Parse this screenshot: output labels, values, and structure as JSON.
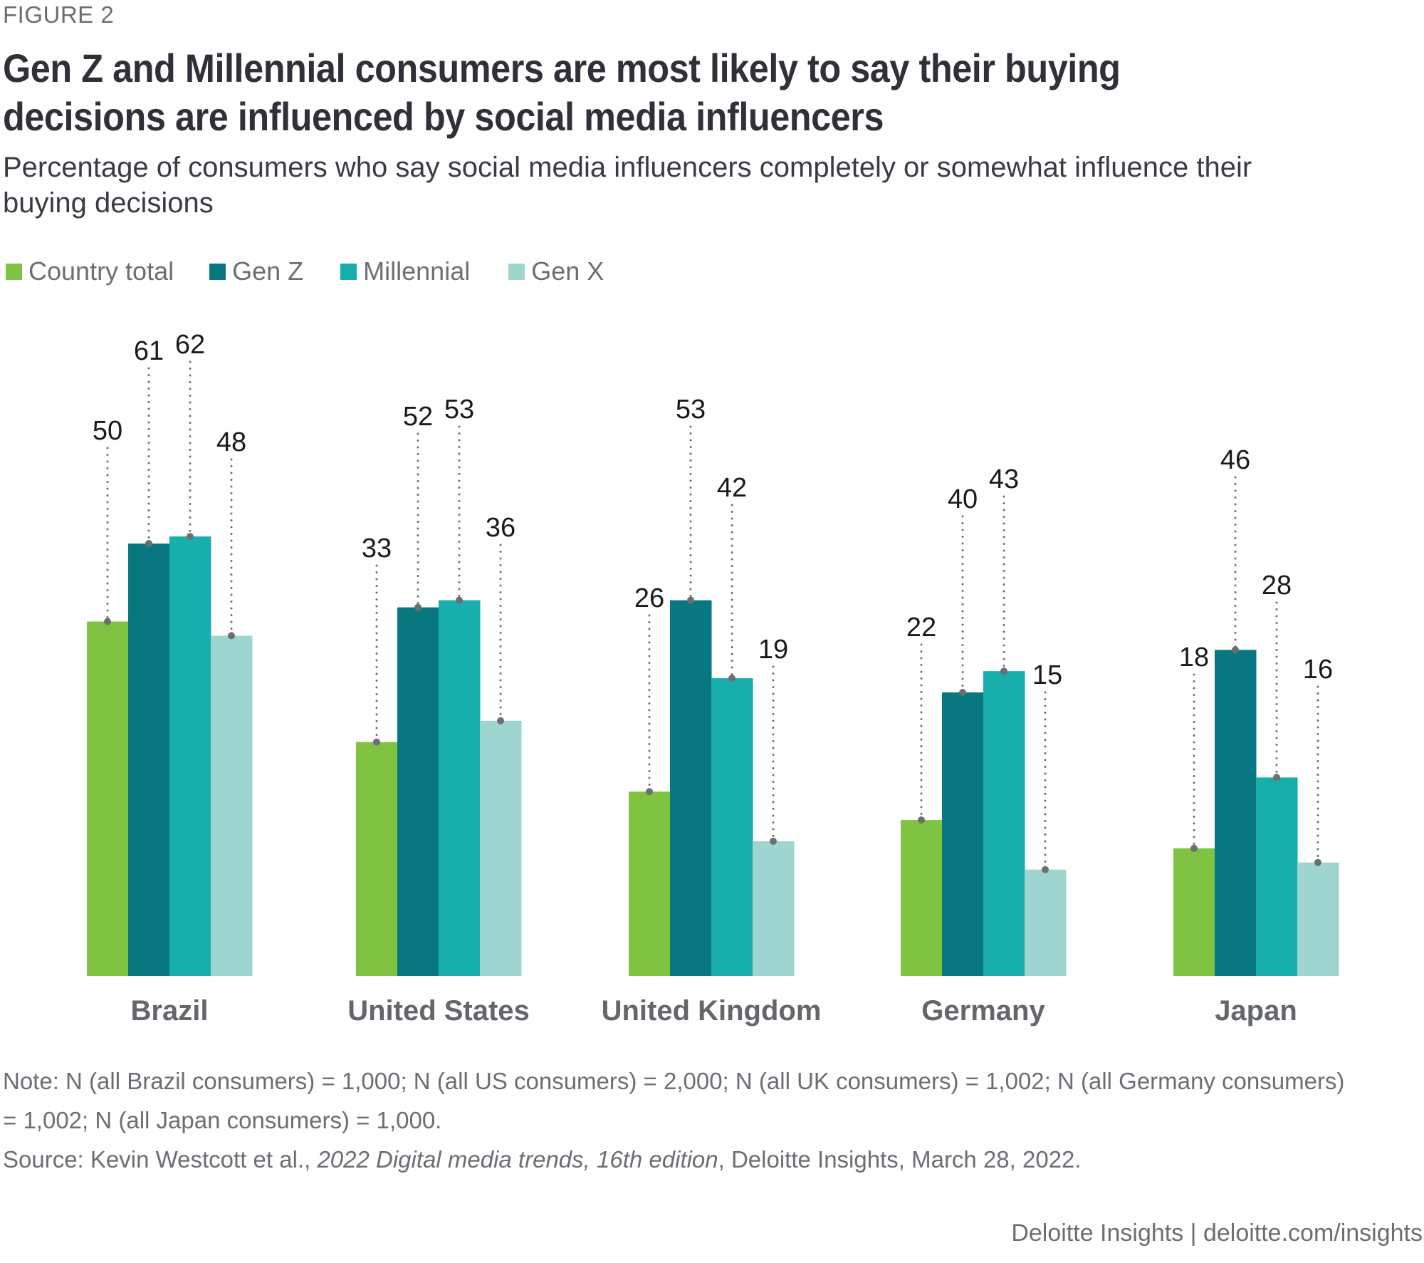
{
  "figure_label": "FIGURE 2",
  "title": "Gen Z and Millennial consumers are most likely to say their buying decisions are influenced by social media influencers",
  "subtitle": "Percentage of consumers who say social media influencers completely or somewhat influence their buying decisions",
  "note": "Note: N (all Brazil consumers) = 1,000; N (all US consumers) = 2,000; N (all UK consumers) = 1,002; N (all Germany consumers) = 1,002; N (all Japan consumers) = 1,000.",
  "source": {
    "prefix": "Source: Kevin Westcott et al., ",
    "italic": "2022 Digital media trends, 16th edition",
    "suffix": ", Deloitte Insights, March 28, 2022."
  },
  "footer": "Deloitte Insights | deloitte.com/insights",
  "chart_data": {
    "type": "bar",
    "title": "Gen Z and Millennial consumers are most likely to say their buying decisions are influenced by social media influencers",
    "subtitle": "Percentage of consumers who say social media influencers completely or somewhat influence their buying decisions",
    "xlabel": "",
    "ylabel": "",
    "ylim": [
      0,
      70
    ],
    "grid": false,
    "legend_position": "top-left",
    "categories": [
      "Brazil",
      "United States",
      "United Kingdom",
      "Germany",
      "Japan"
    ],
    "series": [
      {
        "name": "Country total",
        "color": "#80c242",
        "values": [
          50,
          33,
          26,
          22,
          18
        ]
      },
      {
        "name": "Gen Z",
        "color": "#08777f",
        "values": [
          61,
          52,
          53,
          40,
          46
        ]
      },
      {
        "name": "Millennial",
        "color": "#17aeac",
        "values": [
          62,
          53,
          42,
          43,
          28
        ]
      },
      {
        "name": "Gen X",
        "color": "#9fd5d0",
        "values": [
          48,
          36,
          19,
          15,
          16
        ]
      }
    ],
    "annotation_style": "dotted leader lines with value labels above each bar",
    "leader_color": "#6b6e73"
  }
}
